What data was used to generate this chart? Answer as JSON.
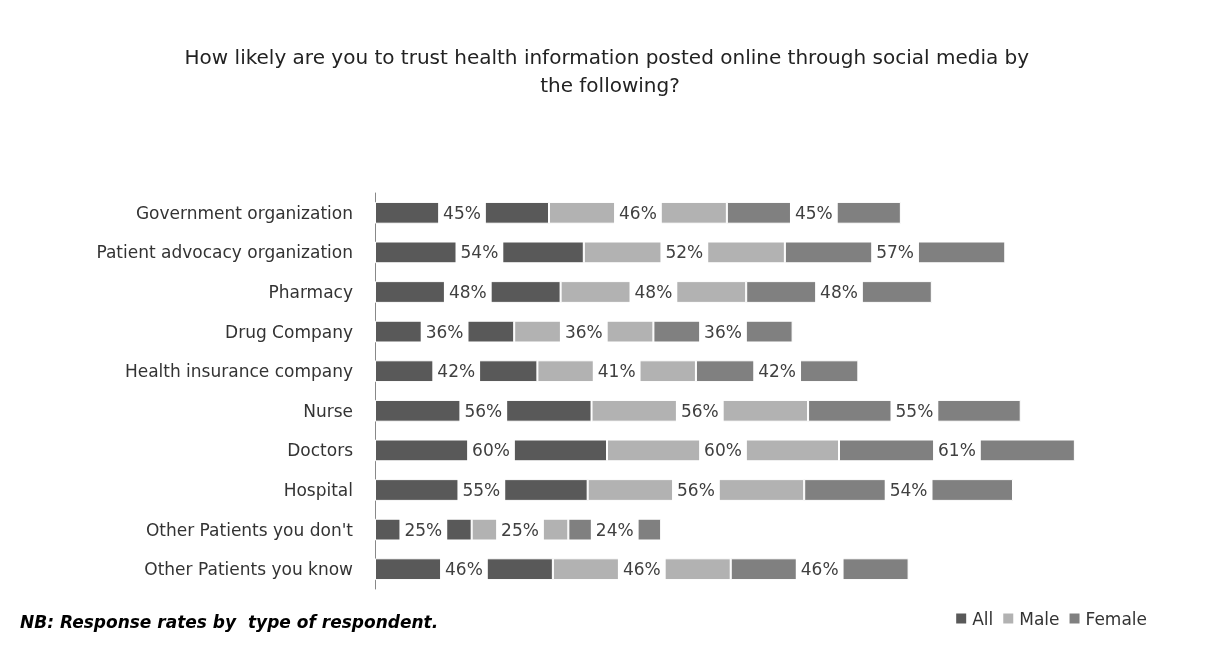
{
  "chart_data": {
    "type": "bar",
    "orientation": "horizontal",
    "stacked": true,
    "title": "How likely are you to trust health information posted online through social media by the following?",
    "categories": [
      "Government organization",
      "Patient advocacy organization",
      "Pharmacy",
      "Drug Company",
      "Health insurance company",
      "Nurse",
      "Doctors",
      "Hospital",
      "Other Patients you don't",
      "Other Patients you know"
    ],
    "series": [
      {
        "name": "All",
        "color": "#595959",
        "values": [
          45,
          54,
          48,
          36,
          42,
          56,
          60,
          55,
          25,
          46
        ],
        "value_labels": [
          "45%",
          "54%",
          "48%",
          "36%",
          "42%",
          "56%",
          "60%",
          "55%",
          "25%",
          "46%"
        ]
      },
      {
        "name": "Male",
        "color": "#b2b2b2",
        "values": [
          46,
          52,
          48,
          36,
          41,
          56,
          60,
          56,
          25,
          46
        ],
        "value_labels": [
          "46%",
          "52%",
          "48%",
          "36%",
          "41%",
          "56%",
          "60%",
          "56%",
          "25%",
          "46%"
        ]
      },
      {
        "name": "Female",
        "color": "#808080",
        "values": [
          45,
          57,
          48,
          36,
          42,
          55,
          61,
          54,
          24,
          46
        ],
        "value_labels": [
          "45%",
          "57%",
          "48%",
          "36%",
          "42%",
          "55%",
          "61%",
          "54%",
          "24%",
          "46%"
        ]
      }
    ],
    "annotations": [
      "NB: Response rates by  type of respondent."
    ],
    "legend": "bottom right"
  }
}
